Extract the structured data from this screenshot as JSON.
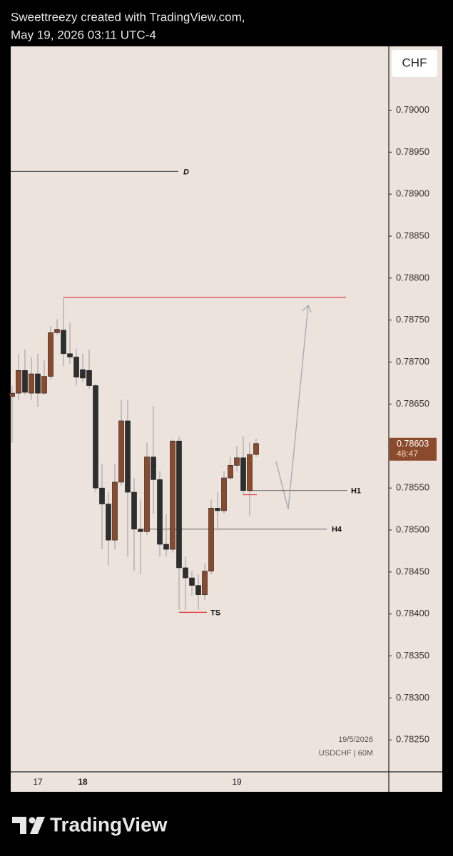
{
  "header": {
    "line1": "Sweettreezy created with TradingView.com,",
    "line2": "May 19, 2026 03:11 UTC-4"
  },
  "chart_data": {
    "type": "candlestick",
    "currency": "CHF",
    "symbol": "USDCHF | 60M",
    "date_label": "19/5/2026",
    "categories": [
      null,
      null,
      null,
      null,
      "17",
      null,
      null,
      null,
      null,
      null,
      null,
      "18",
      null,
      null,
      null,
      null,
      null,
      null,
      null,
      null,
      null,
      null,
      null,
      null,
      null,
      null,
      null,
      null,
      null,
      null,
      null,
      null,
      null,
      null,
      null,
      "19",
      null,
      null,
      null
    ],
    "open": [
      0.78659,
      0.78663,
      0.7869,
      0.78663,
      0.78686,
      0.78663,
      0.78683,
      0.78735,
      0.78738,
      0.7871,
      0.78706,
      0.78691,
      0.7869,
      0.78672,
      0.7855,
      0.78531,
      0.78488,
      0.78557,
      0.7863,
      0.78545,
      0.78501,
      0.78498,
      0.78587,
      0.7856,
      0.78483,
      0.78477,
      0.78606,
      0.78455,
      0.78443,
      0.78434,
      0.78423,
      0.78451,
      0.78526,
      0.78523,
      0.78562,
      0.78577,
      0.78586,
      0.78547,
      0.7859
    ],
    "high": [
      0.78672,
      0.7871,
      0.78715,
      0.78706,
      0.7871,
      0.78702,
      0.78743,
      0.78751,
      0.78777,
      0.78747,
      0.78716,
      0.7871,
      0.78715,
      0.78674,
      0.78579,
      0.78545,
      0.78579,
      0.78655,
      0.78655,
      0.78562,
      0.78536,
      0.78604,
      0.78648,
      0.7857,
      0.78519,
      0.78608,
      0.78611,
      0.78468,
      0.78451,
      0.78447,
      0.7846,
      0.78536,
      0.78545,
      0.7857,
      0.78587,
      0.786,
      0.78611,
      0.78604,
      0.78609
    ],
    "low": [
      0.78604,
      0.78655,
      0.78661,
      0.78655,
      0.78647,
      0.78661,
      0.78679,
      0.78732,
      0.78695,
      0.78698,
      0.78672,
      0.78676,
      0.78668,
      0.78545,
      0.78477,
      0.78458,
      0.78477,
      0.78553,
      0.78468,
      0.78451,
      0.78447,
      0.78494,
      0.78519,
      0.78468,
      0.78468,
      0.78473,
      0.78405,
      0.78405,
      0.78422,
      0.78405,
      0.78417,
      0.78447,
      0.78502,
      0.78519,
      0.7856,
      0.7857,
      0.78541,
      0.78517,
      0.78587
    ],
    "close": [
      0.78663,
      0.7869,
      0.78664,
      0.78686,
      0.78663,
      0.78683,
      0.78735,
      0.78739,
      0.7871,
      0.78706,
      0.78682,
      0.78681,
      0.78672,
      0.7855,
      0.78531,
      0.78488,
      0.78557,
      0.7863,
      0.78545,
      0.78501,
      0.78498,
      0.78587,
      0.7856,
      0.78483,
      0.78477,
      0.78606,
      0.78455,
      0.78443,
      0.78434,
      0.78423,
      0.78451,
      0.78526,
      0.78523,
      0.78562,
      0.78577,
      0.78586,
      0.78547,
      0.7859,
      0.78603
    ],
    "up_color": "#8b4a2b",
    "down_color": "#2e2e2e",
    "wick_color": "#9a9a9a",
    "ylim": [
      0.78212,
      0.79076
    ],
    "yticks": [
      {
        "value": 0.7825,
        "label": "0.78250"
      },
      {
        "value": 0.783,
        "label": "0.78300"
      },
      {
        "value": 0.7835,
        "label": "0.78350"
      },
      {
        "value": 0.784,
        "label": "0.78400"
      },
      {
        "value": 0.7845,
        "label": "0.78450"
      },
      {
        "value": 0.785,
        "label": "0.78500"
      },
      {
        "value": 0.7855,
        "label": "0.78550"
      },
      {
        "value": 0.786,
        "label": "0.78600"
      },
      {
        "value": 0.7865,
        "label": "0.78650"
      },
      {
        "value": 0.787,
        "label": "0.78700"
      },
      {
        "value": 0.7875,
        "label": "0.78750"
      },
      {
        "value": 0.788,
        "label": "0.78800"
      },
      {
        "value": 0.7885,
        "label": "0.78850"
      },
      {
        "value": 0.789,
        "label": "0.78900"
      },
      {
        "value": 0.7895,
        "label": "0.78950"
      },
      {
        "value": 0.79,
        "label": "0.79000"
      }
    ],
    "last_price": 0.78603,
    "countdown": "48:47",
    "levels": [
      {
        "label": "D",
        "value": 0.78927,
        "color": "#555555"
      },
      {
        "value": 0.78777,
        "color": "#e03030"
      },
      {
        "label": "H1",
        "value": 0.78547,
        "color": "#777777"
      },
      {
        "label": "H4",
        "value": 0.78501,
        "color": "#777777"
      },
      {
        "label": "TS",
        "value": 0.78402,
        "color": "#e03030"
      },
      {
        "value": 0.78542,
        "color": "#e03030"
      }
    ]
  },
  "footer": {
    "brand": "TradingView"
  }
}
